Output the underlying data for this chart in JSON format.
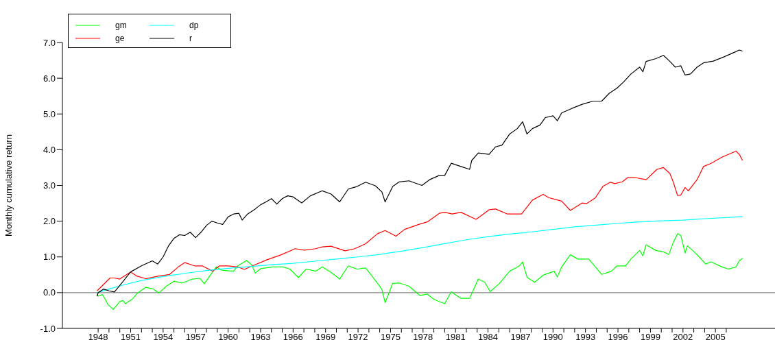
{
  "chart_data": {
    "type": "line",
    "ylabel": "Monthly cumulative return",
    "xlim": [
      1944.7,
      2010.5
    ],
    "xticks": [
      1948,
      {
        "value": 1949,
        "label": null
      },
      {
        "value": 1950,
        "label": null
      },
      1951,
      {
        "value": 1952,
        "label": null
      },
      {
        "value": 1953,
        "label": null
      },
      1954,
      {
        "value": 1955,
        "label": null
      },
      {
        "value": 1956,
        "label": null
      },
      1957,
      {
        "value": 1958,
        "label": null
      },
      {
        "value": 1959,
        "label": null
      },
      1960,
      {
        "value": 1961,
        "label": null
      },
      {
        "value": 1962,
        "label": null
      },
      1963,
      {
        "value": 1964,
        "label": null
      },
      {
        "value": 1965,
        "label": null
      },
      1966,
      {
        "value": 1967,
        "label": null
      },
      {
        "value": 1968,
        "label": null
      },
      1969,
      {
        "value": 1970,
        "label": null
      },
      {
        "value": 1971,
        "label": null
      },
      1972,
      {
        "value": 1973,
        "label": null
      },
      {
        "value": 1974,
        "label": null
      },
      1975,
      {
        "value": 1976,
        "label": null
      },
      {
        "value": 1977,
        "label": null
      },
      1978,
      {
        "value": 1979,
        "label": null
      },
      {
        "value": 1980,
        "label": null
      },
      1981,
      {
        "value": 1982,
        "label": null
      },
      {
        "value": 1983,
        "label": null
      },
      1984,
      {
        "value": 1985,
        "label": null
      },
      {
        "value": 1986,
        "label": null
      },
      1987,
      {
        "value": 1988,
        "label": null
      },
      {
        "value": 1989,
        "label": null
      },
      1990,
      {
        "value": 1991,
        "label": null
      },
      {
        "value": 1992,
        "label": null
      },
      1993,
      {
        "value": 1994,
        "label": null
      },
      {
        "value": 1995,
        "label": null
      },
      1996,
      {
        "value": 1997,
        "label": null
      },
      {
        "value": 1998,
        "label": null
      },
      1999,
      {
        "value": 2000,
        "label": null
      },
      {
        "value": 2001,
        "label": null
      },
      2002,
      {
        "value": 2003,
        "label": null
      },
      {
        "value": 2004,
        "label": null
      },
      2005,
      {
        "value": 2006,
        "label": null
      }
    ],
    "ylim": [
      -1,
      7
    ],
    "yticks": [
      {
        "value": -1,
        "label": "-1.0"
      },
      {
        "value": 0,
        "label": "0.0"
      },
      {
        "value": 1,
        "label": "1.0"
      },
      {
        "value": 2,
        "label": "2.0"
      },
      {
        "value": 3,
        "label": "3.0"
      },
      {
        "value": 4,
        "label": "4.0"
      },
      {
        "value": 5,
        "label": "5.0"
      },
      {
        "value": 6,
        "label": "6.0"
      },
      {
        "value": 7,
        "label": "7.0"
      }
    ],
    "grid": false,
    "legend": "top left",
    "marker": "none",
    "line_style": "solid",
    "ref_lines": [
      {
        "axis": "y",
        "value": 0,
        "color": "#808080"
      }
    ],
    "series": [
      {
        "name": "gm",
        "color": "#00ff00",
        "x": [
          1947.9,
          1948.0,
          1948.4,
          1948.9,
          1949.4,
          1950.0,
          1950.3,
          1950.5,
          1951.2,
          1951.6,
          1952.4,
          1953.1,
          1953.6,
          1954.3,
          1955.0,
          1955.8,
          1956.7,
          1957.4,
          1957.8,
          1958.9,
          1959.4,
          1960.5,
          1960.9,
          1961.7,
          1962.2,
          1962.5,
          1963.0,
          1964.1,
          1965.1,
          1965.7,
          1966.5,
          1967.2,
          1968.1,
          1968.7,
          1969.5,
          1970.3,
          1971.1,
          1971.9,
          1972.7,
          1973.3,
          1973.8,
          1974.2,
          1974.5,
          1975.2,
          1975.8,
          1976.7,
          1977.7,
          1978.4,
          1979.0,
          1980.0,
          1980.6,
          1981.5,
          1982.3,
          1983.1,
          1983.7,
          1984.2,
          1985.0,
          1986.0,
          1986.9,
          1987.2,
          1987.6,
          1988.3,
          1989.1,
          1990.1,
          1990.4,
          1990.8,
          1991.6,
          1992.3,
          1993.3,
          1994.5,
          1995.4,
          1995.9,
          1996.7,
          1997.2,
          1998.0,
          1998.3,
          1998.6,
          1999.5,
          2000.2,
          2000.7,
          2001.1,
          2001.5,
          2001.8,
          2002.2,
          2002.4,
          2002.9,
          2003.5,
          2004.1,
          2004.6,
          2005.6,
          2006.2,
          2006.9,
          2007.2,
          2007.5
        ],
        "values": [
          -0.03,
          -0.1,
          -0.05,
          -0.33,
          -0.47,
          -0.25,
          -0.22,
          -0.31,
          -0.17,
          -0.02,
          0.15,
          0.1,
          -0.01,
          0.18,
          0.32,
          0.27,
          0.38,
          0.4,
          0.25,
          0.72,
          0.63,
          0.6,
          0.75,
          0.9,
          0.77,
          0.55,
          0.67,
          0.72,
          0.72,
          0.66,
          0.42,
          0.66,
          0.6,
          0.72,
          0.57,
          0.38,
          0.75,
          0.66,
          0.69,
          0.46,
          0.26,
          0.09,
          -0.28,
          0.26,
          0.27,
          0.18,
          -0.08,
          -0.04,
          -0.19,
          -0.31,
          0.02,
          -0.16,
          -0.16,
          0.38,
          0.29,
          0.03,
          0.24,
          0.6,
          0.75,
          0.86,
          0.43,
          0.29,
          0.49,
          0.6,
          0.44,
          0.72,
          1.06,
          0.94,
          0.94,
          0.51,
          0.6,
          0.75,
          0.75,
          0.94,
          1.18,
          1.03,
          1.34,
          1.18,
          1.14,
          1.07,
          1.4,
          1.65,
          1.6,
          1.11,
          1.31,
          1.18,
          1.0,
          0.8,
          0.86,
          0.72,
          0.66,
          0.72,
          0.89,
          0.96
        ]
      },
      {
        "name": "ge",
        "color": "#ff0000",
        "x": [
          1947.9,
          1948.4,
          1949.1,
          1949.5,
          1950.0,
          1951.0,
          1951.6,
          1952.4,
          1953.5,
          1954.6,
          1955.4,
          1956.0,
          1956.9,
          1957.6,
          1958.6,
          1959.2,
          1960.0,
          1960.9,
          1961.5,
          1962.4,
          1963.6,
          1964.9,
          1966.2,
          1967.0,
          1968.1,
          1968.7,
          1969.5,
          1970.8,
          1971.7,
          1972.7,
          1973.8,
          1974.5,
          1975.5,
          1976.3,
          1977.6,
          1978.4,
          1979.5,
          1980.0,
          1980.7,
          1981.5,
          1982.9,
          1984.1,
          1984.7,
          1985.8,
          1987.1,
          1988.1,
          1989.1,
          1989.6,
          1990.2,
          1990.8,
          1991.6,
          1992.7,
          1993.1,
          1993.9,
          1994.6,
          1995.3,
          1995.7,
          1996.4,
          1996.9,
          1997.6,
          1998.6,
          1999.6,
          2000.2,
          2000.8,
          2001.1,
          2001.5,
          2001.8,
          2002.2,
          2002.5,
          2003.3,
          2003.9,
          2004.6,
          2005.6,
          2006.9,
          2007.2,
          2007.5
        ],
        "values": [
          0.05,
          0.2,
          0.41,
          0.41,
          0.38,
          0.58,
          0.46,
          0.39,
          0.46,
          0.51,
          0.72,
          0.84,
          0.75,
          0.75,
          0.6,
          0.75,
          0.75,
          0.72,
          0.65,
          0.77,
          0.92,
          1.06,
          1.23,
          1.19,
          1.23,
          1.28,
          1.3,
          1.17,
          1.23,
          1.37,
          1.65,
          1.74,
          1.58,
          1.77,
          1.91,
          1.98,
          2.22,
          2.25,
          2.2,
          2.25,
          2.05,
          2.32,
          2.34,
          2.2,
          2.2,
          2.59,
          2.75,
          2.66,
          2.61,
          2.56,
          2.3,
          2.51,
          2.49,
          2.65,
          2.97,
          3.09,
          3.05,
          3.1,
          3.22,
          3.22,
          3.16,
          3.45,
          3.5,
          3.33,
          3.1,
          2.72,
          2.73,
          2.94,
          2.85,
          3.16,
          3.53,
          3.62,
          3.79,
          3.96,
          3.87,
          3.7
        ]
      },
      {
        "name": "dp",
        "color": "#00ffff",
        "x": [
          1947.9,
          1949,
          1950,
          1952,
          1954,
          1956,
          1958,
          1960,
          1962,
          1964,
          1966,
          1968,
          1970,
          1972,
          1974,
          1976,
          1978,
          1980,
          1982,
          1984,
          1986,
          1988,
          1990,
          1992,
          1994,
          1996,
          1998,
          2000,
          2002,
          2004,
          2006,
          2007.5
        ],
        "values": [
          0,
          0.1,
          0.19,
          0.34,
          0.45,
          0.54,
          0.62,
          0.68,
          0.73,
          0.78,
          0.82,
          0.88,
          0.94,
          1.0,
          1.07,
          1.16,
          1.26,
          1.37,
          1.48,
          1.57,
          1.64,
          1.7,
          1.77,
          1.84,
          1.89,
          1.94,
          1.98,
          2.01,
          2.03,
          2.07,
          2.1,
          2.13
        ]
      },
      {
        "name": "r",
        "color": "#000000",
        "x": [
          1947.9,
          1948.0,
          1948.5,
          1949.0,
          1949.5,
          1950.0,
          1951.0,
          1952.0,
          1953.0,
          1953.5,
          1954.0,
          1954.5,
          1955.0,
          1955.5,
          1956.0,
          1956.5,
          1957.0,
          1957.5,
          1958.0,
          1958.5,
          1959.0,
          1959.5,
          1960.0,
          1960.5,
          1961.0,
          1961.3,
          1961.8,
          1962.5,
          1963.0,
          1963.5,
          1964.0,
          1964.5,
          1965.0,
          1965.5,
          1966.0,
          1966.8,
          1967.6,
          1968.7,
          1969.5,
          1970.3,
          1971.1,
          1971.9,
          1972.7,
          1973.6,
          1974.2,
          1974.5,
          1975.2,
          1975.8,
          1976.7,
          1977.9,
          1978.6,
          1979.5,
          1980.0,
          1980.6,
          1981.5,
          1982.3,
          1982.5,
          1983.1,
          1984.1,
          1984.7,
          1985.3,
          1986.0,
          1986.7,
          1987.2,
          1987.6,
          1988.1,
          1988.8,
          1989.3,
          1990.0,
          1990.4,
          1990.8,
          1991.7,
          1992.7,
          1993.7,
          1994.5,
          1995.2,
          1995.9,
          1996.5,
          1997.2,
          1998.0,
          1998.3,
          1998.6,
          1999.5,
          2000.2,
          2000.8,
          2001.3,
          2001.8,
          2002.2,
          2002.7,
          2003.3,
          2003.9,
          2004.8,
          2005.8,
          2006.7,
          2007.2,
          2007.5
        ],
        "values": [
          -0.1,
          0,
          0.1,
          0.05,
          0.02,
          0.2,
          0.58,
          0.75,
          0.89,
          0.8,
          1.0,
          1.31,
          1.52,
          1.62,
          1.6,
          1.69,
          1.54,
          1.69,
          1.88,
          2.0,
          1.95,
          1.91,
          2.12,
          2.2,
          2.22,
          2.03,
          2.2,
          2.34,
          2.46,
          2.54,
          2.63,
          2.48,
          2.63,
          2.71,
          2.68,
          2.51,
          2.71,
          2.85,
          2.76,
          2.54,
          2.9,
          2.97,
          3.09,
          2.99,
          2.82,
          2.54,
          2.97,
          3.1,
          3.13,
          3.0,
          3.16,
          3.28,
          3.28,
          3.62,
          3.53,
          3.45,
          3.7,
          3.91,
          3.87,
          4.08,
          4.13,
          4.44,
          4.59,
          4.78,
          4.44,
          4.59,
          4.69,
          4.9,
          4.95,
          4.81,
          5.03,
          5.15,
          5.27,
          5.36,
          5.36,
          5.58,
          5.72,
          5.89,
          6.12,
          6.31,
          6.18,
          6.47,
          6.55,
          6.64,
          6.47,
          6.31,
          6.35,
          6.09,
          6.12,
          6.31,
          6.43,
          6.48,
          6.6,
          6.72,
          6.79,
          6.76
        ]
      }
    ]
  }
}
